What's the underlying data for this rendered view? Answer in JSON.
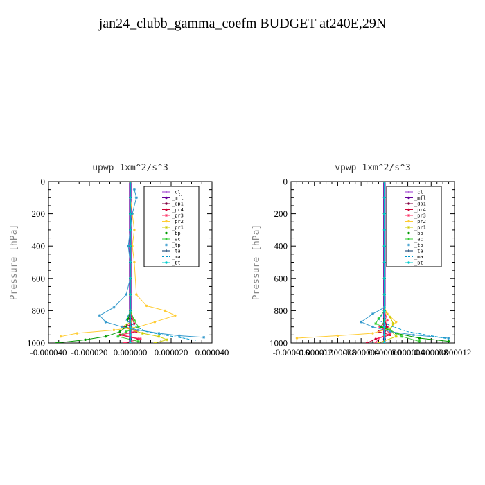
{
  "figure_title": "jan24_clubb_gamma_coefm  BUDGET at240E,29N",
  "chart_data": [
    {
      "type": "line",
      "title": "upwp   1xm^2/s^3",
      "ylabel": "Pressure [hPa]",
      "ylim": [
        1000,
        0
      ],
      "xlim": [
        -4e-05,
        4e-05
      ],
      "xticks": [
        -4e-05,
        -2e-05,
        0,
        2e-05,
        4e-05
      ],
      "xtick_labels": [
        "-0.000040",
        "-0.000020",
        "0.000000",
        "0.000020",
        "0.000040"
      ],
      "yticks": [
        0,
        200,
        400,
        600,
        800,
        1000
      ],
      "ytick_labels": [
        "0",
        "200",
        "400",
        "600",
        "800",
        "1000"
      ],
      "legend": {
        "placement": "top-right",
        "entries": [
          "_cl",
          "_mfl",
          "_dp1",
          "_pr4",
          "_pr3",
          "_pr2",
          "_pr1",
          "_bp",
          "_ac",
          "_tp",
          "_ta",
          "_ma",
          "_bt"
        ]
      },
      "series": [
        {
          "name": "_cl",
          "color": "#9933cc",
          "marker": "plus",
          "x": [
            0,
            0,
            0,
            0,
            0,
            0,
            0,
            0,
            0,
            0,
            0,
            0,
            0,
            0
          ],
          "y": [
            0,
            100,
            200,
            300,
            400,
            500,
            600,
            700,
            800,
            850,
            900,
            950,
            975,
            1000
          ]
        },
        {
          "name": "_mfl",
          "color": "#660099",
          "marker": "circle",
          "x": [
            0,
            0,
            0,
            0,
            0,
            0,
            0,
            0,
            0,
            0,
            0,
            0,
            0,
            0
          ],
          "y": [
            0,
            100,
            200,
            300,
            400,
            500,
            600,
            700,
            800,
            850,
            900,
            950,
            975,
            1000
          ]
        },
        {
          "name": "_dp1",
          "color": "#800040",
          "marker": "circle",
          "x": [
            0,
            0,
            0,
            0,
            0,
            0,
            0,
            0,
            0,
            0,
            5e-07,
            0,
            0
          ],
          "y": [
            0,
            100,
            200,
            300,
            400,
            500,
            600,
            700,
            800,
            850,
            900,
            950,
            1000
          ]
        },
        {
          "name": "_pr4",
          "color": "#cc0033",
          "marker": "circle",
          "x": [
            0,
            0,
            0,
            0,
            0,
            0,
            1e-06,
            2e-06,
            -3e-06,
            3e-06,
            -5e-06,
            4e-06,
            -2e-06
          ],
          "y": [
            0,
            200,
            400,
            600,
            700,
            800,
            850,
            880,
            900,
            930,
            950,
            975,
            1000
          ]
        },
        {
          "name": "_pr3",
          "color": "#ff3366",
          "marker": "star",
          "x": [
            0,
            0,
            0,
            0,
            0,
            0,
            1e-06,
            -2e-06,
            3e-06,
            -4e-06,
            5e-06,
            -3e-06
          ],
          "y": [
            0,
            200,
            400,
            600,
            700,
            800,
            850,
            900,
            925,
            950,
            975,
            1000
          ]
        },
        {
          "name": "_pr2",
          "color": "#ffcc33",
          "marker": "circle",
          "x": [
            0,
            0,
            1e-06,
            2e-06,
            1e-06,
            2e-06,
            3e-06,
            8e-06,
            1.7e-05,
            2.2e-05,
            1.2e-05,
            4e-06,
            -8e-06,
            -2.6e-05,
            -3.4e-05
          ],
          "y": [
            0,
            100,
            200,
            300,
            400,
            500,
            700,
            770,
            800,
            830,
            870,
            900,
            920,
            940,
            960
          ]
        },
        {
          "name": "_pr1",
          "color": "#cccc00",
          "marker": "star",
          "x": [
            0,
            0,
            0,
            0,
            0,
            0,
            2e-06,
            -4e-06,
            6e-06,
            1.4e-05,
            1.8e-05,
            1.2e-05
          ],
          "y": [
            0,
            200,
            400,
            600,
            700,
            800,
            860,
            900,
            940,
            960,
            980,
            1000
          ]
        },
        {
          "name": "_bp",
          "color": "#009900",
          "marker": "circle",
          "x": [
            0,
            0,
            0,
            0,
            0,
            0,
            -1e-06,
            -2e-06,
            -5e-06,
            -1.2e-05,
            -2.2e-05,
            -3.6e-05
          ],
          "y": [
            0,
            200,
            400,
            600,
            700,
            800,
            850,
            900,
            930,
            960,
            980,
            1000
          ]
        },
        {
          "name": "_ac",
          "color": "#33cc33",
          "marker": "star",
          "x": [
            0,
            0,
            0,
            0,
            0,
            0,
            2e-06,
            4e-06,
            -2e-06,
            -6e-06,
            4e-06
          ],
          "y": [
            0,
            200,
            400,
            600,
            700,
            800,
            860,
            900,
            930,
            960,
            990
          ]
        },
        {
          "name": "_tp",
          "color": "#3399cc",
          "marker": "star",
          "x": [
            2e-06,
            3e-06,
            1e-06,
            0,
            -1e-06,
            0,
            0,
            -2e-06,
            -8e-06,
            -1.5e-05,
            -1.2e-05,
            -4e-06,
            4e-06,
            1.4e-05,
            2.4e-05,
            3.6e-05
          ],
          "y": [
            50,
            100,
            200,
            300,
            400,
            500,
            600,
            700,
            780,
            830,
            870,
            900,
            920,
            940,
            955,
            965
          ]
        },
        {
          "name": "_ta",
          "color": "#003366",
          "marker": "plus",
          "x": [
            0,
            0,
            0,
            0,
            0,
            0,
            0,
            0,
            0,
            0,
            0,
            0,
            0,
            0
          ],
          "y": [
            0,
            100,
            200,
            300,
            400,
            500,
            600,
            700,
            800,
            850,
            900,
            950,
            975,
            1000
          ]
        },
        {
          "name": "_ma",
          "color": "#0099cc",
          "marker": "none",
          "x": [
            0,
            0,
            0,
            0,
            0,
            0,
            -2e-06,
            3e-06,
            8e-06,
            1.6e-05,
            2.6e-05,
            3.2e-05
          ],
          "y": [
            0,
            200,
            400,
            600,
            700,
            800,
            860,
            900,
            930,
            950,
            970,
            985
          ]
        },
        {
          "name": "_bt",
          "color": "#00cccc",
          "marker": "circle",
          "x": [
            0,
            0,
            0,
            0,
            0,
            0,
            0,
            0,
            0,
            0,
            0,
            0
          ],
          "y": [
            0,
            100,
            200,
            300,
            400,
            500,
            600,
            700,
            800,
            900,
            950,
            1000
          ]
        }
      ]
    },
    {
      "type": "line",
      "title": "vpwp   1xm^2/s^3",
      "ylabel": "Pressure [hPa]",
      "ylim": [
        1000,
        0
      ],
      "xlim": [
        -1.6e-05,
        1.2e-05
      ],
      "xticks": [
        -1.6e-05,
        -1.2e-05,
        -8e-06,
        -4e-06,
        0,
        4e-06,
        8e-06,
        1.2e-05
      ],
      "xtick_labels": [
        "-0.000016",
        "-0.000012",
        "-0.000008",
        "-0.000004",
        "0.000000",
        "0.000004",
        "0.000008",
        "0.000012"
      ],
      "yticks": [
        0,
        200,
        400,
        600,
        800,
        1000
      ],
      "ytick_labels": [
        "0",
        "200",
        "400",
        "600",
        "800",
        "1000"
      ],
      "legend": {
        "placement": "top-right",
        "entries": [
          "_cl",
          "_mfl",
          "_dp1",
          "_pr4",
          "_pr3",
          "_pr2",
          "_pr1",
          "_bp",
          "_ac",
          "_tp",
          "_ta",
          "_ma",
          "_bt"
        ]
      },
      "series": [
        {
          "name": "_cl",
          "color": "#9933cc",
          "marker": "plus",
          "x": [
            0,
            0,
            0,
            0,
            0,
            0,
            0,
            0,
            0,
            0,
            0,
            0,
            0,
            0
          ],
          "y": [
            0,
            100,
            200,
            300,
            400,
            500,
            600,
            700,
            800,
            850,
            900,
            950,
            975,
            1000
          ]
        },
        {
          "name": "_mfl",
          "color": "#660099",
          "marker": "circle",
          "x": [
            0,
            0,
            0,
            0,
            0,
            0,
            0,
            0,
            0,
            0,
            0,
            0,
            0,
            0
          ],
          "y": [
            0,
            100,
            200,
            300,
            400,
            500,
            600,
            700,
            800,
            850,
            900,
            950,
            975,
            1000
          ]
        },
        {
          "name": "_dp1",
          "color": "#800040",
          "marker": "circle",
          "x": [
            0,
            0,
            0,
            0,
            0,
            0,
            0,
            0,
            0,
            0,
            4e-07,
            0,
            0
          ],
          "y": [
            0,
            100,
            200,
            300,
            400,
            500,
            600,
            700,
            800,
            850,
            900,
            950,
            1000
          ]
        },
        {
          "name": "_pr4",
          "color": "#cc0033",
          "marker": "circle",
          "x": [
            0,
            0,
            0,
            0,
            0,
            0,
            0,
            5e-07,
            -1e-06,
            1e-06,
            -1.5e-06,
            -3e-06
          ],
          "y": [
            0,
            200,
            400,
            600,
            700,
            800,
            850,
            900,
            930,
            950,
            975,
            1000
          ]
        },
        {
          "name": "_pr3",
          "color": "#ff3366",
          "marker": "star",
          "x": [
            0,
            0,
            0,
            0,
            0,
            0,
            5e-07,
            -8e-07,
            1e-06,
            -1e-06,
            -1.5e-06
          ],
          "y": [
            0,
            200,
            400,
            600,
            700,
            800,
            860,
            900,
            940,
            970,
            1000
          ]
        },
        {
          "name": "_pr2",
          "color": "#ffcc33",
          "marker": "circle",
          "x": [
            0,
            0,
            0,
            0,
            0,
            0,
            5e-07,
            2e-06,
            1e-06,
            -2e-06,
            -8e-06,
            -1.5e-05
          ],
          "y": [
            0,
            200,
            400,
            600,
            700,
            780,
            820,
            870,
            910,
            940,
            955,
            970
          ]
        },
        {
          "name": "_pr1",
          "color": "#cccc00",
          "marker": "star",
          "x": [
            0,
            0,
            0,
            0,
            0,
            0,
            1e-06,
            1.5e-06,
            1e-06,
            2e-06,
            -1e-06
          ],
          "y": [
            0,
            200,
            400,
            600,
            700,
            800,
            840,
            880,
            920,
            960,
            1000
          ]
        },
        {
          "name": "_bp",
          "color": "#009900",
          "marker": "circle",
          "x": [
            0,
            0,
            0,
            0,
            0,
            0,
            0,
            -5e-07,
            2e-06,
            6e-06,
            1.1e-05
          ],
          "y": [
            0,
            200,
            400,
            600,
            700,
            800,
            860,
            900,
            940,
            970,
            990
          ]
        },
        {
          "name": "_ac",
          "color": "#33cc33",
          "marker": "star",
          "x": [
            0,
            0,
            0,
            0,
            0,
            0,
            -1e-06,
            -1.5e-06,
            1e-06,
            3e-06,
            6e-06
          ],
          "y": [
            0,
            200,
            400,
            600,
            700,
            800,
            850,
            880,
            920,
            960,
            990
          ]
        },
        {
          "name": "_tp",
          "color": "#3399cc",
          "marker": "star",
          "x": [
            0,
            0,
            0,
            0,
            0,
            0,
            -2e-06,
            -4e-06,
            -2e-06,
            1e-06,
            5e-06,
            1.1e-05
          ],
          "y": [
            0,
            200,
            400,
            600,
            700,
            780,
            820,
            870,
            900,
            930,
            950,
            970
          ]
        },
        {
          "name": "_ta",
          "color": "#003366",
          "marker": "plus",
          "x": [
            0,
            0,
            0,
            0,
            0,
            0,
            0,
            0,
            0,
            0,
            0,
            0,
            0,
            0
          ],
          "y": [
            0,
            100,
            200,
            300,
            400,
            500,
            600,
            700,
            800,
            850,
            900,
            950,
            975,
            1000
          ]
        },
        {
          "name": "_ma",
          "color": "#0099cc",
          "marker": "none",
          "x": [
            0,
            0,
            0,
            0,
            0,
            0,
            -1e-06,
            1.5e-06,
            4e-06,
            8e-06,
            1.1e-05
          ],
          "y": [
            0,
            200,
            400,
            600,
            700,
            800,
            860,
            900,
            930,
            955,
            975
          ]
        },
        {
          "name": "_bt",
          "color": "#00cccc",
          "marker": "circle",
          "x": [
            0,
            0,
            0,
            0,
            0,
            0,
            0,
            0,
            0,
            0,
            0,
            0
          ],
          "y": [
            0,
            100,
            200,
            300,
            400,
            500,
            600,
            700,
            800,
            900,
            950,
            1000
          ]
        }
      ]
    }
  ]
}
